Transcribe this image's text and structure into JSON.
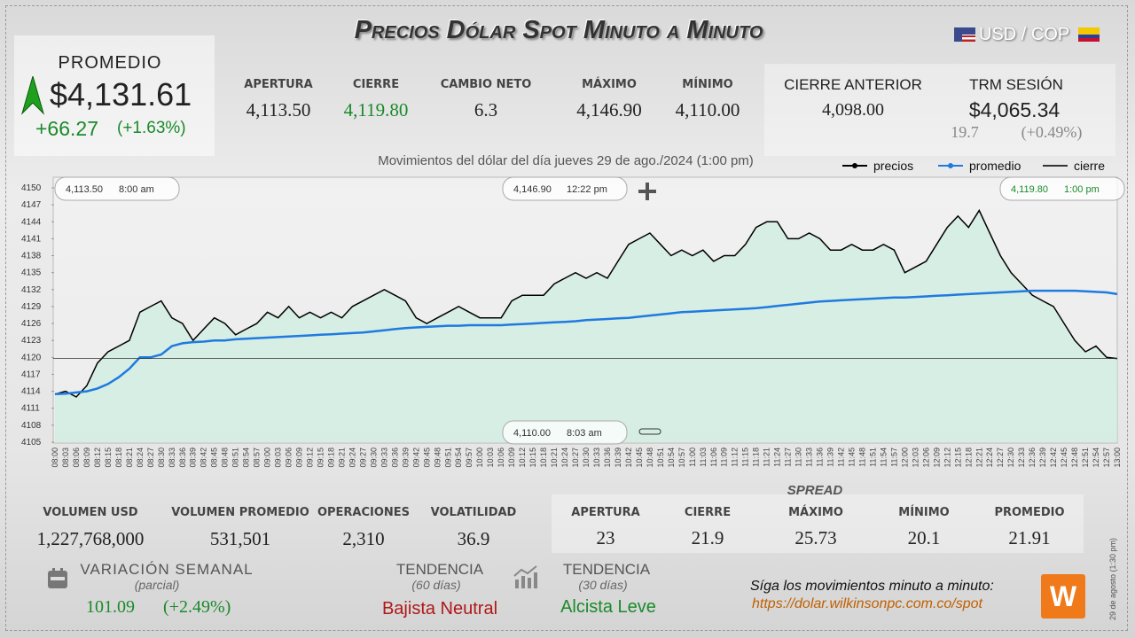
{
  "header": {
    "title": "Precios Dólar Spot Minuto a Minuto",
    "currency": "USD / COP"
  },
  "promedio": {
    "label": "PROMEDIO",
    "value": "$4,131.61",
    "change": "+66.27",
    "change_pct": "(+1.63%)"
  },
  "stats": [
    {
      "label": "APERTURA",
      "value": "4,113.50"
    },
    {
      "label": "CIERRE",
      "value": "4,119.80"
    },
    {
      "label": "CAMBIO NETO",
      "value": "6.3"
    },
    {
      "label": "MÁXIMO",
      "value": "4,146.90"
    },
    {
      "label": "MÍNIMO",
      "value": "4,110.00"
    }
  ],
  "previous": {
    "label": "CIERRE ANTERIOR",
    "value": "4,098.00"
  },
  "trm": {
    "label": "TRM SESIÓN",
    "value": "$4,065.34",
    "change": "19.7",
    "change_pct": "(+0.49%)"
  },
  "chart_data": {
    "type": "line",
    "subtitle": "Movimientos del dólar del día jueves 29 de ago./2024 (1:00 pm)",
    "categories": [
      "08:00",
      "08:03",
      "08:06",
      "08:09",
      "08:12",
      "08:15",
      "08:18",
      "08:21",
      "08:24",
      "08:27",
      "08:30",
      "08:33",
      "08:36",
      "08:39",
      "08:42",
      "08:45",
      "08:48",
      "08:51",
      "08:54",
      "08:57",
      "09:00",
      "09:03",
      "09:06",
      "09:09",
      "09:12",
      "09:15",
      "09:18",
      "09:21",
      "09:24",
      "09:27",
      "09:30",
      "09:33",
      "09:36",
      "09:39",
      "09:42",
      "09:45",
      "09:48",
      "09:51",
      "09:54",
      "09:57",
      "10:00",
      "10:03",
      "10:06",
      "10:09",
      "10:12",
      "10:15",
      "10:18",
      "10:21",
      "10:24",
      "10:27",
      "10:30",
      "10:33",
      "10:36",
      "10:39",
      "10:42",
      "10:45",
      "10:48",
      "10:51",
      "10:54",
      "10:57",
      "11:00",
      "11:03",
      "11:06",
      "11:09",
      "11:12",
      "11:15",
      "11:18",
      "11:21",
      "11:24",
      "11:27",
      "11:30",
      "11:33",
      "11:36",
      "11:39",
      "11:42",
      "11:45",
      "11:48",
      "11:51",
      "11:54",
      "11:57",
      "12:00",
      "12:03",
      "12:06",
      "12:09",
      "12:12",
      "12:15",
      "12:18",
      "12:21",
      "12:24",
      "12:27",
      "12:30",
      "12:33",
      "12:36",
      "12:39",
      "12:42",
      "12:45",
      "12:48",
      "12:51",
      "12:54",
      "12:57",
      "13:00"
    ],
    "series": [
      {
        "name": "precios",
        "color": "#000000",
        "values": [
          4113.5,
          4114,
          4113,
          4115,
          4119,
          4121,
          4122,
          4123,
          4128,
          4129,
          4130,
          4127,
          4126,
          4123,
          4125,
          4127,
          4126,
          4124,
          4125,
          4126,
          4128,
          4127,
          4129,
          4127,
          4128,
          4127,
          4128,
          4127,
          4129,
          4130,
          4131,
          4132,
          4131,
          4130,
          4127,
          4126,
          4127,
          4128,
          4129,
          4128,
          4127,
          4127,
          4127,
          4130,
          4131,
          4131,
          4131,
          4133,
          4134,
          4135,
          4134,
          4135,
          4134,
          4137,
          4140,
          4141,
          4142,
          4140,
          4138,
          4139,
          4138,
          4139,
          4137,
          4138,
          4138,
          4140,
          4143,
          4144,
          4144,
          4141,
          4141,
          4142,
          4141,
          4139,
          4139,
          4140,
          4139,
          4139,
          4140,
          4139,
          4135,
          4136,
          4137,
          4140,
          4143,
          4145,
          4143,
          4146,
          4142,
          4138,
          4135,
          4133,
          4131,
          4130,
          4129,
          4126,
          4123,
          4121,
          4122,
          4120,
          4119.8
        ]
      },
      {
        "name": "promedio",
        "color": "#1f7ae0",
        "values": [
          4113.5,
          4113.6,
          4113.8,
          4114,
          4114.5,
          4115.3,
          4116.5,
          4118,
          4120,
          4120,
          4120.5,
          4122,
          4122.5,
          4122.7,
          4122.8,
          4123,
          4123,
          4123.2,
          4123.3,
          4123.4,
          4123.5,
          4123.6,
          4123.7,
          4123.8,
          4123.9,
          4124,
          4124.1,
          4124.2,
          4124.3,
          4124.4,
          4124.6,
          4124.8,
          4125,
          4125.2,
          4125.3,
          4125.4,
          4125.5,
          4125.6,
          4125.6,
          4125.7,
          4125.7,
          4125.7,
          4125.7,
          4125.8,
          4125.9,
          4126,
          4126.1,
          4126.2,
          4126.3,
          4126.4,
          4126.6,
          4126.7,
          4126.8,
          4126.9,
          4127,
          4127.2,
          4127.4,
          4127.6,
          4127.8,
          4128,
          4128.1,
          4128.2,
          4128.3,
          4128.4,
          4128.5,
          4128.6,
          4128.7,
          4128.9,
          4129.1,
          4129.3,
          4129.5,
          4129.7,
          4129.9,
          4130,
          4130.1,
          4130.2,
          4130.3,
          4130.4,
          4130.5,
          4130.6,
          4130.6,
          4130.7,
          4130.8,
          4130.9,
          4131,
          4131.1,
          4131.2,
          4131.3,
          4131.4,
          4131.5,
          4131.6,
          4131.7,
          4131.8,
          4131.8,
          4131.8,
          4131.8,
          4131.8,
          4131.7,
          4131.6,
          4131.5,
          4131.2
        ]
      },
      {
        "name": "cierre",
        "color": "#333333",
        "value": 4119.8
      }
    ],
    "area_color": "#cdeee0",
    "ylim": [
      4105,
      4150
    ],
    "yticks": [
      4105,
      4108,
      4111,
      4114,
      4117,
      4120,
      4123,
      4126,
      4129,
      4132,
      4135,
      4138,
      4141,
      4144,
      4147,
      4150
    ],
    "grid": false,
    "annotations": [
      {
        "price": "4,113.50",
        "time": "8:00 am"
      },
      {
        "price": "4,146.90",
        "time": "12:22 pm"
      },
      {
        "price": "4,119.80",
        "time": "1:00 pm"
      },
      {
        "price": "4,110.00",
        "time": "8:03 am"
      }
    ]
  },
  "volume": [
    {
      "label": "VOLUMEN USD",
      "value": "1,227,768,000"
    },
    {
      "label": "VOLUMEN PROMEDIO",
      "value": "531,501"
    },
    {
      "label": "OPERACIONES",
      "value": "2,310"
    },
    {
      "label": "VOLATILIDAD",
      "value": "36.9"
    }
  ],
  "spread": {
    "title": "SPREAD",
    "items": [
      {
        "label": "APERTURA",
        "value": "23"
      },
      {
        "label": "CIERRE",
        "value": "21.9"
      },
      {
        "label": "MÁXIMO",
        "value": "25.73"
      },
      {
        "label": "MÍNIMO",
        "value": "20.1"
      },
      {
        "label": "PROMEDIO",
        "value": "21.91"
      }
    ]
  },
  "weekly": {
    "label": "VARIACIÓN SEMANAL",
    "sub": "(parcial)",
    "value": "101.09",
    "pct": "(+2.49%)"
  },
  "trend60": {
    "label": "TENDENCIA",
    "sub": "(60 días)",
    "value": "Bajista Neutral"
  },
  "trend30": {
    "label": "TENDENCIA",
    "sub": "(30 días)",
    "value": "Alcista Leve"
  },
  "footer": {
    "text": "Síga los movimientos minuto a minuto:",
    "url": "https://dolar.wilkinsonpc.com.co/spot",
    "stamp": "29 de agosto (1:30 pm)"
  }
}
